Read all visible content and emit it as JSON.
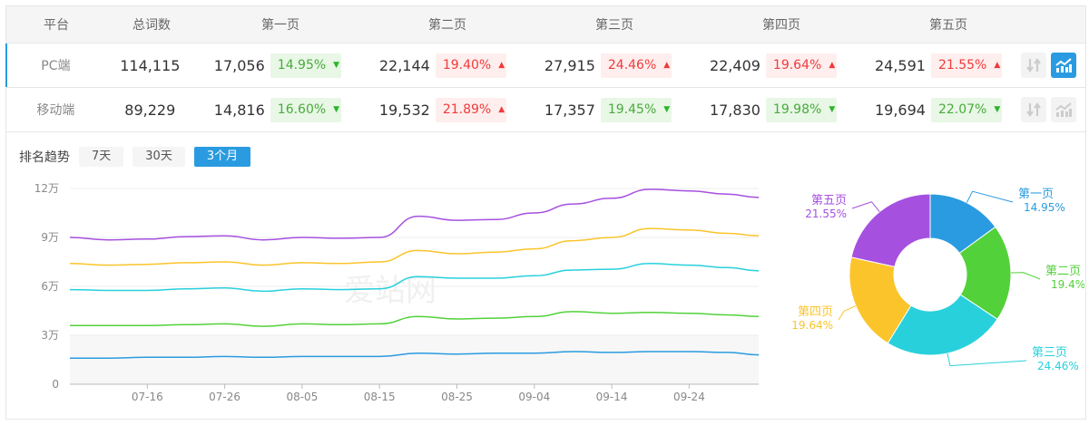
{
  "table": {
    "headers": [
      "平台",
      "总词数",
      "第一页",
      "第二页",
      "第三页",
      "第四页",
      "第五页"
    ],
    "rows": [
      {
        "platform": "PC端",
        "total": "114,115",
        "active": true,
        "pages": [
          {
            "count": "17,056",
            "pct": "14.95%",
            "dir": "down"
          },
          {
            "count": "22,144",
            "pct": "19.40%",
            "dir": "up"
          },
          {
            "count": "27,915",
            "pct": "24.46%",
            "dir": "up"
          },
          {
            "count": "22,409",
            "pct": "19.64%",
            "dir": "up"
          },
          {
            "count": "24,591",
            "pct": "21.55%",
            "dir": "up"
          }
        ],
        "chart_icon_active": true
      },
      {
        "platform": "移动端",
        "total": "89,229",
        "active": false,
        "pages": [
          {
            "count": "14,816",
            "pct": "16.60%",
            "dir": "down"
          },
          {
            "count": "19,532",
            "pct": "21.89%",
            "dir": "up"
          },
          {
            "count": "17,357",
            "pct": "19.45%",
            "dir": "down"
          },
          {
            "count": "17,830",
            "pct": "19.98%",
            "dir": "down"
          },
          {
            "count": "19,694",
            "pct": "22.07%",
            "dir": "down"
          }
        ],
        "chart_icon_active": false
      }
    ],
    "icons": [
      "sort-icon",
      "chart-trend-icon"
    ]
  },
  "trend": {
    "label": "排名趋势",
    "ranges": [
      "7天",
      "30天",
      "3个月"
    ],
    "selected": "3个月"
  },
  "watermark": "爱站网",
  "chart_data": [
    {
      "type": "line",
      "yticks": [
        "0",
        "3万",
        "6万",
        "9万",
        "12万"
      ],
      "ylim": [
        0,
        120000
      ],
      "xticks": [
        "07-16",
        "07-26",
        "08-05",
        "08-15",
        "08-25",
        "09-04",
        "09-14",
        "09-24"
      ],
      "x": [
        "07-06",
        "07-11",
        "07-16",
        "07-21",
        "07-26",
        "07-31",
        "08-05",
        "08-10",
        "08-15",
        "08-20",
        "08-25",
        "08-30",
        "09-04",
        "09-09",
        "09-14",
        "09-19",
        "09-24",
        "09-29",
        "10-03"
      ],
      "grid": true,
      "series": [
        {
          "color": "#2a9be0",
          "values": [
            16000,
            16000,
            16500,
            16500,
            17000,
            16500,
            17000,
            17000,
            17000,
            19000,
            18500,
            19000,
            19000,
            20000,
            19500,
            20000,
            20000,
            19500,
            18000
          ]
        },
        {
          "color": "#52d13a",
          "values": [
            36000,
            36000,
            36000,
            36500,
            37000,
            35500,
            37000,
            36500,
            37000,
            41500,
            40000,
            40500,
            41500,
            44500,
            43500,
            44000,
            43500,
            42500,
            41500
          ]
        },
        {
          "color": "#28d0dc",
          "values": [
            58000,
            57500,
            57500,
            58500,
            59000,
            57000,
            58500,
            58000,
            58500,
            66000,
            65000,
            65000,
            66500,
            70000,
            70500,
            74000,
            73000,
            71500,
            69500
          ]
        },
        {
          "color": "#fbc42b",
          "values": [
            74000,
            73000,
            73500,
            74500,
            75000,
            73000,
            74500,
            74000,
            75000,
            82000,
            80000,
            81000,
            83000,
            88000,
            90000,
            95500,
            94500,
            92500,
            91000
          ]
        },
        {
          "color": "#a650e0",
          "values": [
            90000,
            88500,
            89000,
            90500,
            91000,
            88500,
            90000,
            89500,
            90000,
            103000,
            100500,
            101000,
            105000,
            110500,
            114000,
            119500,
            118500,
            116500,
            114500
          ]
        }
      ]
    },
    {
      "type": "pie",
      "slices": [
        {
          "label": "第一页",
          "pct": "14.95%",
          "value": 14.95,
          "color": "#2a9be0"
        },
        {
          "label": "第二页",
          "pct": "19.4%",
          "value": 19.4,
          "color": "#52d13a"
        },
        {
          "label": "第三页",
          "pct": "24.46%",
          "value": 24.46,
          "color": "#28d0dc"
        },
        {
          "label": "第四页",
          "pct": "19.64%",
          "value": 19.64,
          "color": "#fbc42b"
        },
        {
          "label": "第五页",
          "pct": "21.55%",
          "value": 21.55,
          "color": "#a650e0"
        }
      ]
    }
  ]
}
